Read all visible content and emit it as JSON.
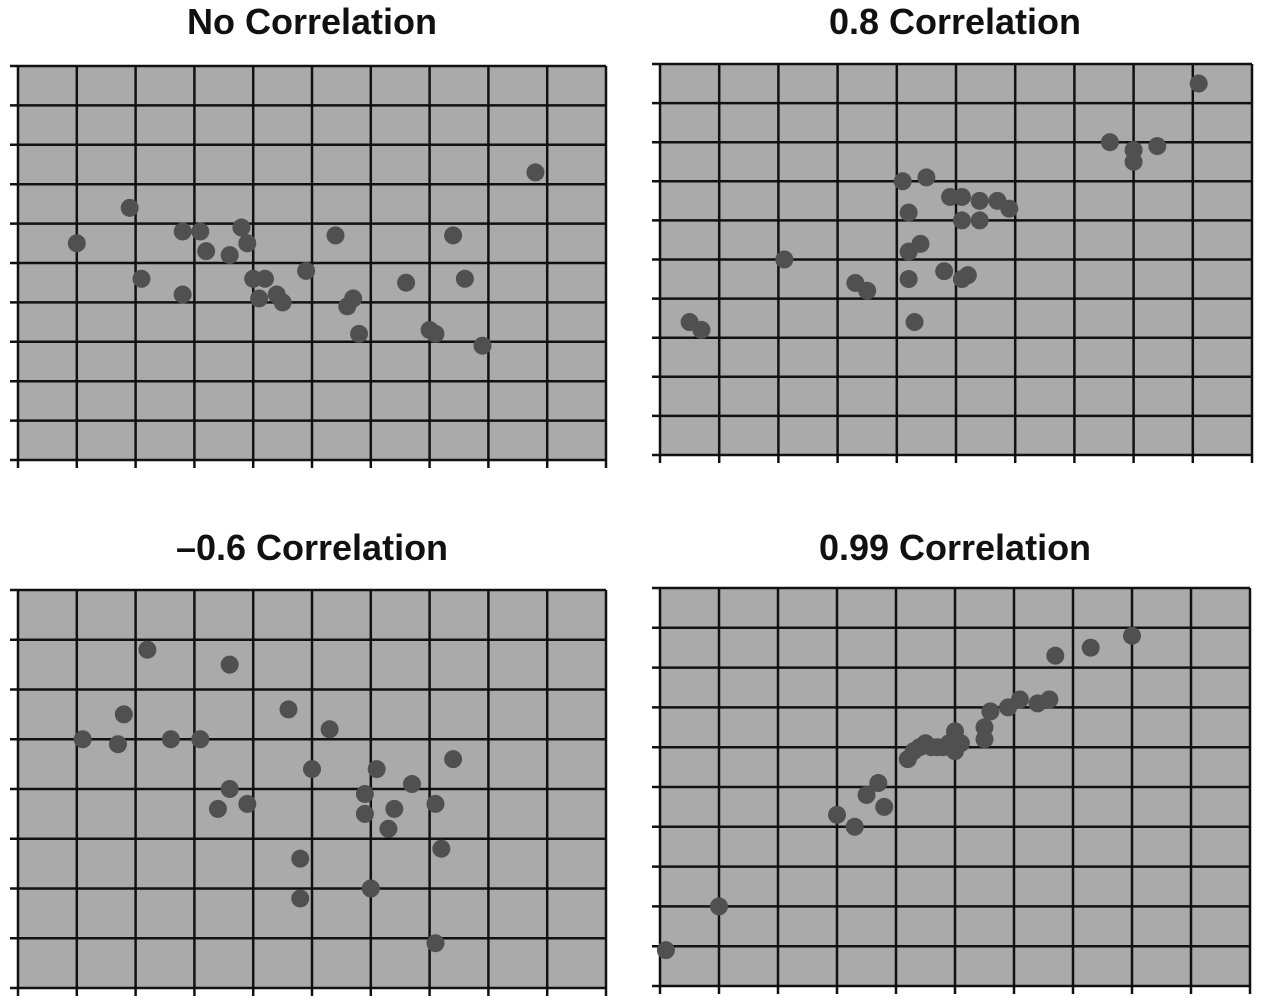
{
  "style": {
    "plot_background": "#aaaaaa",
    "grid_color": "#111111",
    "point_color": "#505050",
    "title_color": "#111111"
  },
  "chart_data": [
    {
      "type": "scatter",
      "title": "No Correlation",
      "xlabel": "",
      "ylabel": "",
      "xlim": [
        0,
        10
      ],
      "ylim": [
        0,
        10
      ],
      "grid": true,
      "points": [
        [
          1,
          5.5
        ],
        [
          1.9,
          6.4
        ],
        [
          2.1,
          4.6
        ],
        [
          2.8,
          4.2
        ],
        [
          2.8,
          5.8
        ],
        [
          3.1,
          5.8
        ],
        [
          3.2,
          5.3
        ],
        [
          3.6,
          5.2
        ],
        [
          3.8,
          5.9
        ],
        [
          3.9,
          5.5
        ],
        [
          4.0,
          4.6
        ],
        [
          4.1,
          4.1
        ],
        [
          4.2,
          4.6
        ],
        [
          4.4,
          4.2
        ],
        [
          4.5,
          4.0
        ],
        [
          4.9,
          4.8
        ],
        [
          5.4,
          5.7
        ],
        [
          5.6,
          3.9
        ],
        [
          5.7,
          4.1
        ],
        [
          5.8,
          3.2
        ],
        [
          6.6,
          4.5
        ],
        [
          7.0,
          3.3
        ],
        [
          7.1,
          3.2
        ],
        [
          7.4,
          5.7
        ],
        [
          7.6,
          4.6
        ],
        [
          7.9,
          2.9
        ],
        [
          8.8,
          7.3
        ]
      ]
    },
    {
      "type": "scatter",
      "title": "0.8 Correlation",
      "xlabel": "",
      "ylabel": "",
      "xlim": [
        0,
        10
      ],
      "ylim": [
        0,
        10
      ],
      "grid": true,
      "points": [
        [
          0.5,
          3.4
        ],
        [
          0.7,
          3.2
        ],
        [
          2.1,
          5.0
        ],
        [
          3.3,
          4.4
        ],
        [
          3.5,
          4.2
        ],
        [
          4.1,
          7.0
        ],
        [
          4.2,
          6.2
        ],
        [
          4.2,
          5.2
        ],
        [
          4.2,
          4.5
        ],
        [
          4.3,
          3.4
        ],
        [
          4.4,
          5.4
        ],
        [
          4.5,
          7.1
        ],
        [
          4.8,
          4.7
        ],
        [
          4.9,
          6.6
        ],
        [
          5.1,
          6.6
        ],
        [
          5.1,
          6.0
        ],
        [
          5.1,
          4.5
        ],
        [
          5.2,
          4.6
        ],
        [
          5.4,
          6.5
        ],
        [
          5.4,
          6.0
        ],
        [
          5.7,
          6.5
        ],
        [
          5.9,
          6.3
        ],
        [
          7.6,
          8.0
        ],
        [
          8.0,
          7.8
        ],
        [
          8.0,
          7.5
        ],
        [
          8.4,
          7.9
        ],
        [
          9.1,
          9.5
        ]
      ]
    },
    {
      "type": "scatter",
      "title": "–0.6 Correlation",
      "xlabel": "",
      "ylabel": "",
      "xlim": [
        0,
        10
      ],
      "ylim": [
        0,
        8
      ],
      "grid": true,
      "points": [
        [
          1.1,
          5.0
        ],
        [
          1.8,
          5.5
        ],
        [
          1.7,
          4.9
        ],
        [
          2.2,
          6.8
        ],
        [
          2.6,
          5.0
        ],
        [
          3.1,
          5.0
        ],
        [
          3.6,
          6.5
        ],
        [
          3.6,
          4.0
        ],
        [
          3.4,
          3.6
        ],
        [
          3.9,
          3.7
        ],
        [
          4.6,
          5.6
        ],
        [
          4.8,
          2.6
        ],
        [
          4.8,
          1.8
        ],
        [
          5.0,
          4.4
        ],
        [
          5.3,
          5.2
        ],
        [
          5.9,
          3.9
        ],
        [
          5.9,
          3.5
        ],
        [
          6.0,
          2.0
        ],
        [
          6.1,
          4.4
        ],
        [
          6.3,
          3.2
        ],
        [
          6.4,
          3.6
        ],
        [
          6.7,
          4.1
        ],
        [
          7.1,
          3.7
        ],
        [
          7.2,
          2.8
        ],
        [
          7.1,
          0.9
        ],
        [
          7.4,
          4.6
        ]
      ]
    },
    {
      "type": "scatter",
      "title": "0.99 Correlation",
      "xlabel": "",
      "ylabel": "",
      "xlim": [
        0,
        10
      ],
      "ylim": [
        0,
        10
      ],
      "grid": true,
      "points": [
        [
          0.1,
          0.9
        ],
        [
          1.0,
          2.0
        ],
        [
          3.0,
          4.3
        ],
        [
          3.3,
          4.0
        ],
        [
          3.5,
          4.8
        ],
        [
          3.7,
          5.1
        ],
        [
          3.8,
          4.5
        ],
        [
          4.2,
          5.7
        ],
        [
          4.3,
          5.9
        ],
        [
          4.4,
          6.0
        ],
        [
          4.5,
          6.1
        ],
        [
          4.6,
          6.0
        ],
        [
          4.7,
          6.0
        ],
        [
          4.8,
          6.0
        ],
        [
          4.9,
          6.1
        ],
        [
          5.0,
          5.9
        ],
        [
          5.1,
          6.1
        ],
        [
          5.0,
          6.4
        ],
        [
          5.5,
          6.2
        ],
        [
          5.5,
          6.5
        ],
        [
          5.6,
          6.9
        ],
        [
          5.9,
          7.0
        ],
        [
          6.1,
          7.2
        ],
        [
          6.4,
          7.1
        ],
        [
          6.6,
          7.2
        ],
        [
          6.7,
          8.3
        ],
        [
          7.3,
          8.5
        ],
        [
          8.0,
          8.8
        ]
      ]
    }
  ]
}
